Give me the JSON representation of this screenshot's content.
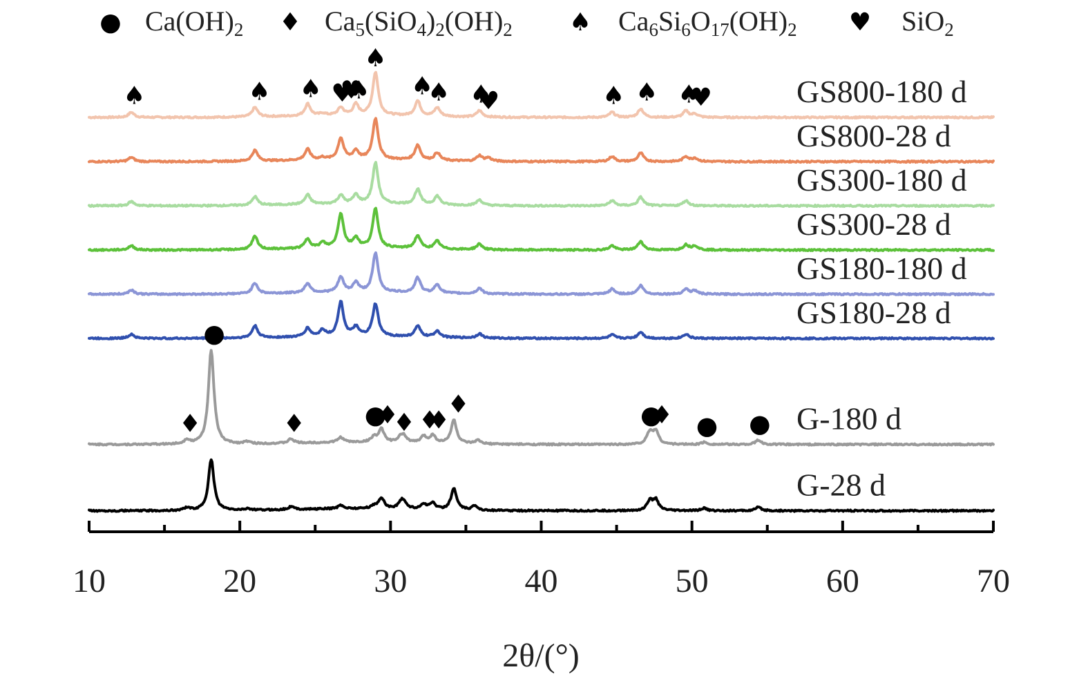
{
  "chart_data": {
    "type": "line",
    "title": "",
    "xlabel": "2θ/(°)",
    "ylabel": "",
    "xlim": [
      10,
      70
    ],
    "x_ticks": [
      10,
      20,
      30,
      40,
      50,
      60,
      70
    ],
    "x_tick_labels": [
      "10",
      "20",
      "30",
      "40",
      "50",
      "60",
      "70"
    ],
    "grid": false,
    "legend_position": "top",
    "legend": [
      {
        "symbol": "●",
        "base": "Ca(OH)",
        "sub": "2",
        "parts": [
          [
            "Ca(OH)",
            "n"
          ],
          [
            "2",
            "s"
          ]
        ]
      },
      {
        "symbol": "♦",
        "parts": [
          [
            "Ca",
            "n"
          ],
          [
            "5",
            "s"
          ],
          [
            "(SiO",
            "n"
          ],
          [
            "4",
            "s"
          ],
          [
            ")",
            "n"
          ],
          [
            "2",
            "s"
          ],
          [
            "(OH)",
            "n"
          ],
          [
            "2",
            "s"
          ]
        ]
      },
      {
        "symbol": "♠",
        "parts": [
          [
            "Ca",
            "n"
          ],
          [
            "6",
            "s"
          ],
          [
            "Si",
            "n"
          ],
          [
            "6",
            "s"
          ],
          [
            "O",
            "n"
          ],
          [
            "17",
            "s"
          ],
          [
            "(OH)",
            "n"
          ],
          [
            "2",
            "s"
          ]
        ]
      },
      {
        "symbol": "♥",
        "parts": [
          [
            "SiO",
            "n"
          ],
          [
            "2",
            "s"
          ]
        ]
      }
    ],
    "series": [
      {
        "name": "GS800-180 d",
        "color": "#f2c4ad",
        "offset": 5,
        "peaks": [
          [
            12.8,
            0.12
          ],
          [
            21.0,
            0.22
          ],
          [
            24.5,
            0.28
          ],
          [
            25.5,
            0.05
          ],
          [
            26.7,
            0.18
          ],
          [
            27.7,
            0.25
          ],
          [
            29.0,
            1.0
          ],
          [
            31.8,
            0.35
          ],
          [
            33.1,
            0.2
          ],
          [
            35.9,
            0.15
          ],
          [
            44.7,
            0.12
          ],
          [
            46.6,
            0.2
          ],
          [
            49.6,
            0.15
          ],
          [
            50.2,
            0.08
          ]
        ],
        "markers": [
          [
            13.0,
            "♠"
          ],
          [
            21.3,
            "♠"
          ],
          [
            24.7,
            "♠"
          ],
          [
            26.8,
            "♥"
          ],
          [
            27.4,
            "♥"
          ],
          [
            27.9,
            "♠"
          ],
          [
            29.0,
            "♠"
          ],
          [
            32.1,
            "♠"
          ],
          [
            33.2,
            "♠"
          ],
          [
            36.0,
            "♠"
          ],
          [
            36.5,
            "♥"
          ],
          [
            44.8,
            "♠"
          ],
          [
            47.0,
            "♠"
          ],
          [
            49.8,
            "♠"
          ],
          [
            50.6,
            "♥"
          ]
        ]
      },
      {
        "name": "GS800-28 d",
        "color": "#e8865a",
        "offset": 4,
        "peaks": [
          [
            12.8,
            0.1
          ],
          [
            21.0,
            0.25
          ],
          [
            24.5,
            0.25
          ],
          [
            25.5,
            0.05
          ],
          [
            26.7,
            0.5
          ],
          [
            27.7,
            0.2
          ],
          [
            29.0,
            0.95
          ],
          [
            31.8,
            0.35
          ],
          [
            33.1,
            0.18
          ],
          [
            35.9,
            0.13
          ],
          [
            36.5,
            0.08
          ],
          [
            44.7,
            0.12
          ],
          [
            46.6,
            0.2
          ],
          [
            49.6,
            0.12
          ],
          [
            50.2,
            0.08
          ]
        ],
        "markers": []
      },
      {
        "name": "GS300-180 d",
        "color": "#a8dca0",
        "offset": 3,
        "peaks": [
          [
            12.8,
            0.1
          ],
          [
            21.0,
            0.2
          ],
          [
            24.5,
            0.22
          ],
          [
            26.7,
            0.2
          ],
          [
            27.7,
            0.2
          ],
          [
            29.0,
            0.95
          ],
          [
            31.8,
            0.35
          ],
          [
            33.1,
            0.2
          ],
          [
            35.9,
            0.13
          ],
          [
            44.7,
            0.12
          ],
          [
            46.6,
            0.2
          ],
          [
            49.6,
            0.12
          ]
        ],
        "markers": []
      },
      {
        "name": "GS300-28 d",
        "color": "#5cc13a",
        "offset": 2,
        "peaks": [
          [
            12.8,
            0.1
          ],
          [
            21.0,
            0.3
          ],
          [
            24.5,
            0.22
          ],
          [
            25.5,
            0.12
          ],
          [
            26.7,
            0.8
          ],
          [
            27.7,
            0.22
          ],
          [
            29.0,
            0.9
          ],
          [
            31.8,
            0.3
          ],
          [
            33.1,
            0.18
          ],
          [
            35.9,
            0.13
          ],
          [
            44.7,
            0.1
          ],
          [
            46.6,
            0.2
          ],
          [
            49.6,
            0.12
          ],
          [
            50.2,
            0.1
          ]
        ],
        "markers": []
      },
      {
        "name": "GS180-180 d",
        "color": "#8b95d6",
        "offset": 1,
        "peaks": [
          [
            12.8,
            0.1
          ],
          [
            21.0,
            0.25
          ],
          [
            24.5,
            0.22
          ],
          [
            26.7,
            0.35
          ],
          [
            27.7,
            0.22
          ],
          [
            29.0,
            0.9
          ],
          [
            31.8,
            0.35
          ],
          [
            33.1,
            0.2
          ],
          [
            35.9,
            0.13
          ],
          [
            44.7,
            0.12
          ],
          [
            46.6,
            0.2
          ],
          [
            49.6,
            0.12
          ],
          [
            50.2,
            0.08
          ]
        ],
        "markers": []
      },
      {
        "name": "GS180-28 d",
        "color": "#2f4fae",
        "offset": 0,
        "peaks": [
          [
            12.8,
            0.1
          ],
          [
            21.0,
            0.28
          ],
          [
            24.5,
            0.2
          ],
          [
            25.5,
            0.15
          ],
          [
            26.7,
            0.8
          ],
          [
            27.7,
            0.2
          ],
          [
            29.0,
            0.75
          ],
          [
            31.8,
            0.25
          ],
          [
            33.1,
            0.15
          ],
          [
            35.9,
            0.1
          ],
          [
            44.7,
            0.08
          ],
          [
            46.6,
            0.15
          ],
          [
            49.6,
            0.1
          ]
        ],
        "markers": []
      },
      {
        "name": "G-180 d",
        "color": "#9a9a9a",
        "offset": -2.4,
        "peaks": [
          [
            16.5,
            0.1
          ],
          [
            18.1,
            2.2
          ],
          [
            20.5,
            0.05
          ],
          [
            23.4,
            0.1
          ],
          [
            26.7,
            0.12
          ],
          [
            28.9,
            0.12
          ],
          [
            29.4,
            0.3
          ],
          [
            30.7,
            0.12
          ],
          [
            30.9,
            0.12
          ],
          [
            32.2,
            0.15
          ],
          [
            32.8,
            0.18
          ],
          [
            34.2,
            0.55
          ],
          [
            35.8,
            0.08
          ],
          [
            47.2,
            0.28
          ],
          [
            47.6,
            0.3
          ],
          [
            50.8,
            0.05
          ],
          [
            54.4,
            0.1
          ]
        ],
        "markers": [
          [
            16.7,
            "♦"
          ],
          [
            18.3,
            "●"
          ],
          [
            23.6,
            "♦"
          ],
          [
            29.0,
            "●"
          ],
          [
            29.8,
            "♦"
          ],
          [
            30.9,
            "♦"
          ],
          [
            32.6,
            "♦"
          ],
          [
            33.2,
            "♦"
          ],
          [
            34.5,
            "♦"
          ],
          [
            47.3,
            "●"
          ],
          [
            48.0,
            "♦"
          ],
          [
            51.0,
            "●"
          ],
          [
            54.5,
            "●"
          ]
        ]
      },
      {
        "name": "G-28 d",
        "color": "#000000",
        "offset": -3.9,
        "peaks": [
          [
            16.5,
            0.07
          ],
          [
            18.1,
            1.2
          ],
          [
            20.5,
            0.04
          ],
          [
            23.4,
            0.07
          ],
          [
            26.7,
            0.08
          ],
          [
            28.9,
            0.06
          ],
          [
            29.4,
            0.25
          ],
          [
            30.7,
            0.15
          ],
          [
            30.9,
            0.12
          ],
          [
            32.2,
            0.12
          ],
          [
            32.8,
            0.15
          ],
          [
            34.2,
            0.5
          ],
          [
            35.6,
            0.1
          ],
          [
            47.2,
            0.22
          ],
          [
            47.6,
            0.25
          ],
          [
            50.8,
            0.06
          ],
          [
            54.4,
            0.08
          ]
        ],
        "markers": []
      }
    ]
  }
}
